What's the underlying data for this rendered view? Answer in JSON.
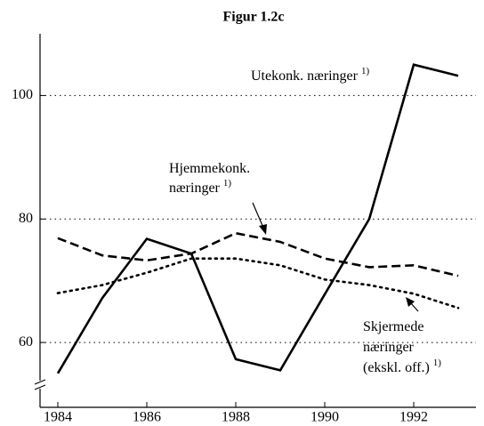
{
  "chart_data": {
    "type": "line",
    "title": "Figur 1.2c",
    "x": [
      1984,
      1985,
      1986,
      1987,
      1988,
      1989,
      1990,
      1991,
      1992,
      1993
    ],
    "xlim": [
      1983.6,
      1993.4
    ],
    "xticks": [
      1984,
      1986,
      1988,
      1990,
      1992
    ],
    "ylim": [
      49.5,
      110
    ],
    "yticks": [
      60,
      80,
      100
    ],
    "grid": true,
    "axis_break": true,
    "series": [
      {
        "color": "#000000",
        "dash": "solid",
        "values": [
          55,
          67.2,
          76.8,
          74.4,
          57.3,
          55.5,
          67.8,
          80,
          105,
          103.2
        ]
      },
      {
        "color": "#000000",
        "dash": "dashed",
        "values": [
          76.9,
          74.1,
          73.3,
          74.4,
          77.7,
          76.3,
          73.6,
          72.2,
          72.5,
          70.8
        ]
      },
      {
        "color": "#000000",
        "dash": "dotted",
        "values": [
          68,
          69.3,
          71.3,
          73.6,
          73.6,
          72.5,
          70.2,
          69.3,
          67.9,
          65.6
        ]
      }
    ],
    "annotations": [
      {
        "lines": [
          "Utekonk. næringer"
        ],
        "sup": "1)"
      },
      {
        "lines": [
          "Hjemmekonk.",
          "næringer"
        ],
        "sup": "1)"
      },
      {
        "lines": [
          "Skjermede",
          "næringer",
          "(ekskl. off.)"
        ],
        "sup": "1)"
      }
    ]
  }
}
